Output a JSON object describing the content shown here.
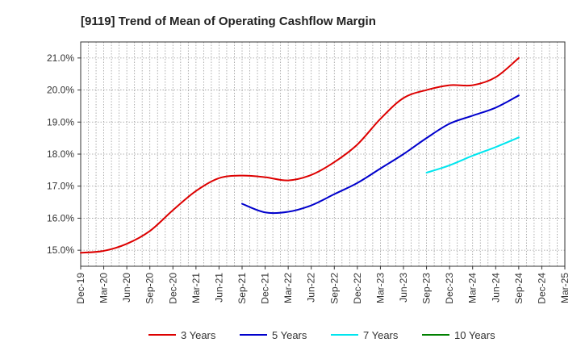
{
  "chart_data": {
    "type": "line",
    "title": "[9119]  Trend of Mean of Operating Cashflow Margin",
    "xlabel": "",
    "ylabel": "",
    "ylim": [
      14.5,
      21.5
    ],
    "y_ticks": [
      15.0,
      16.0,
      17.0,
      18.0,
      19.0,
      20.0,
      21.0
    ],
    "y_tick_labels": [
      "15.0%",
      "16.0%",
      "17.0%",
      "18.0%",
      "19.0%",
      "20.0%",
      "21.0%"
    ],
    "categories": [
      "Dec-19",
      "Mar-20",
      "Jun-20",
      "Sep-20",
      "Dec-20",
      "Mar-21",
      "Jun-21",
      "Sep-21",
      "Dec-21",
      "Mar-22",
      "Jun-22",
      "Sep-22",
      "Dec-22",
      "Mar-23",
      "Jun-23",
      "Sep-23",
      "Dec-23",
      "Mar-24",
      "Jun-24",
      "Sep-24",
      "Dec-24",
      "Mar-25"
    ],
    "grid": true,
    "legend_position": "bottom",
    "series": [
      {
        "name": "3 Years",
        "color": "#dd0000",
        "values": [
          14.92,
          14.98,
          15.2,
          15.6,
          16.25,
          16.85,
          17.25,
          17.33,
          17.28,
          17.18,
          17.35,
          17.75,
          18.3,
          19.1,
          19.75,
          20.0,
          20.15,
          20.15,
          20.4,
          21.0,
          null,
          null
        ]
      },
      {
        "name": "5 Years",
        "color": "#0000cc",
        "values": [
          null,
          null,
          null,
          null,
          null,
          null,
          null,
          16.45,
          16.18,
          16.2,
          16.4,
          16.75,
          17.1,
          17.55,
          18.0,
          18.5,
          18.95,
          19.2,
          19.45,
          19.83,
          null,
          null
        ]
      },
      {
        "name": "7 Years",
        "color": "#00e5ee",
        "values": [
          null,
          null,
          null,
          null,
          null,
          null,
          null,
          null,
          null,
          null,
          null,
          null,
          null,
          null,
          null,
          17.42,
          17.65,
          17.95,
          18.22,
          18.52,
          null,
          null
        ]
      },
      {
        "name": "10 Years",
        "color": "#008000",
        "values": [
          null,
          null,
          null,
          null,
          null,
          null,
          null,
          null,
          null,
          null,
          null,
          null,
          null,
          null,
          null,
          null,
          null,
          null,
          null,
          null,
          null,
          null
        ]
      }
    ]
  }
}
